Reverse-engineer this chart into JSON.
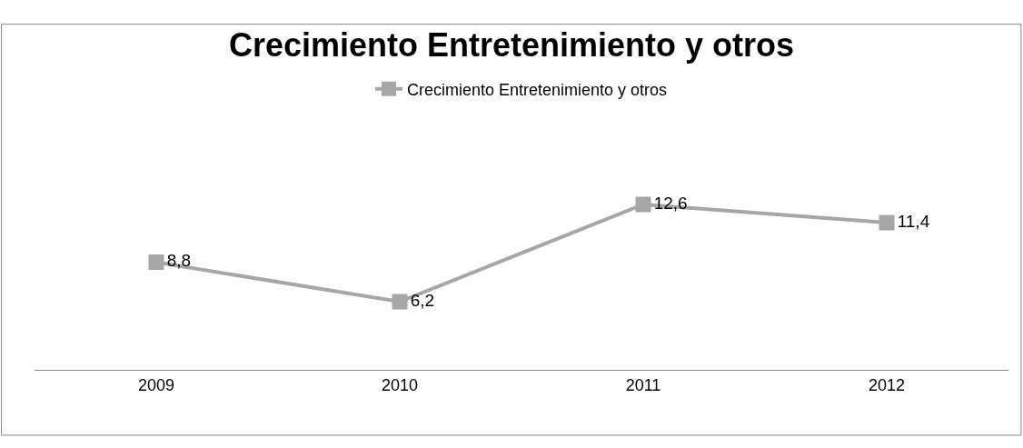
{
  "chart_data": {
    "type": "line",
    "title": "Crecimiento Entretenimiento y otros",
    "categories": [
      "2009",
      "2010",
      "2011",
      "2012"
    ],
    "series": [
      {
        "name": "Crecimiento Entretenimiento y otros",
        "color": "#a6a6a6",
        "values": [
          8.8,
          6.2,
          12.6,
          11.4
        ],
        "value_labels": [
          "8,8",
          "6,2",
          "12,6",
          "11,4"
        ]
      }
    ],
    "marker": "square",
    "line_style": "solid",
    "legend": "top"
  }
}
